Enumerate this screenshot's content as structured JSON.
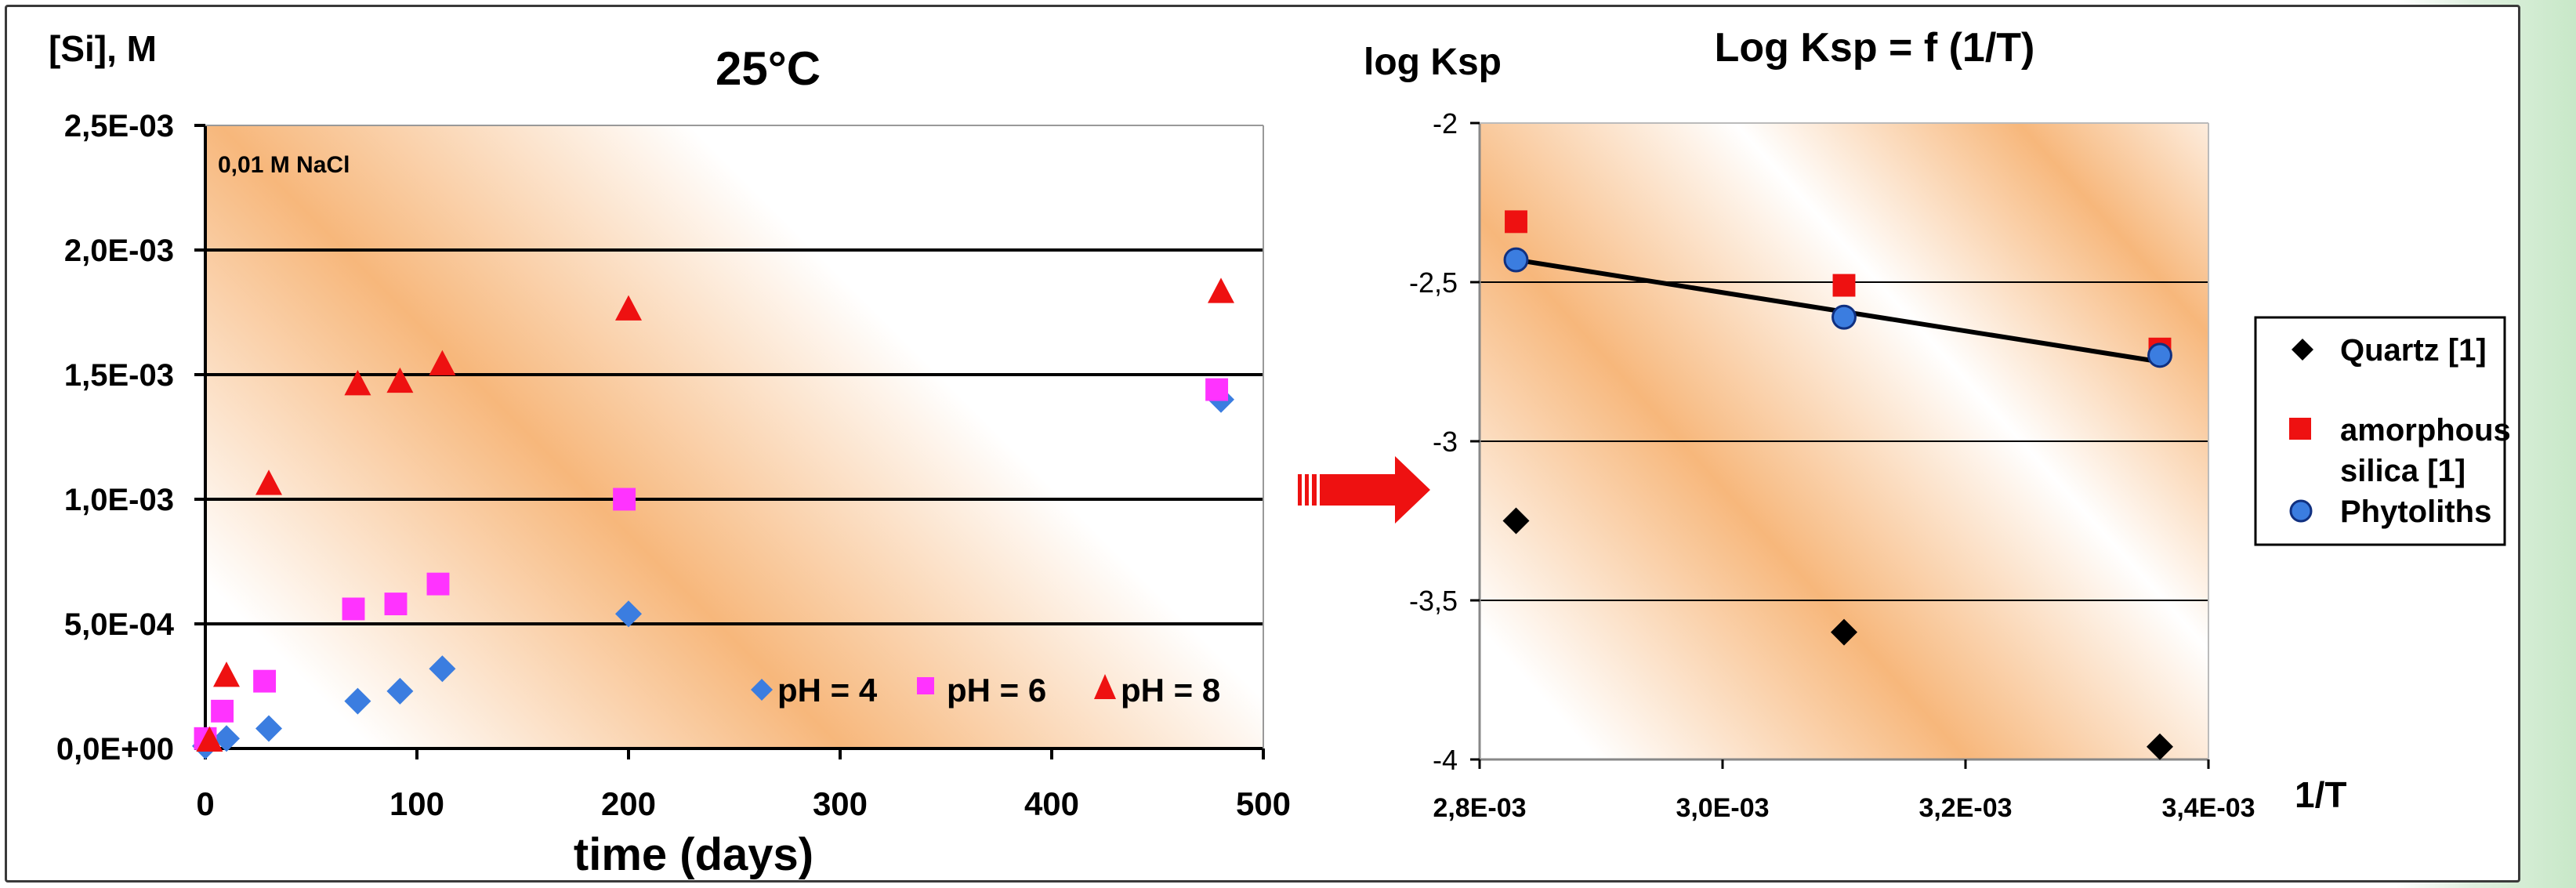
{
  "colors": {
    "ph4": "#3b7de0",
    "ph6": "#ff33ff",
    "ph8": "#ee1111",
    "quartz": "#000000",
    "amorphous": "#ee1111",
    "phytoliths": "#3b7de0",
    "arrow": "#ee1111",
    "band": "#f7b77b"
  },
  "chart_data": [
    {
      "type": "scatter",
      "title": "25°C",
      "xlabel": "time (days)",
      "ylabel": "[Si], M",
      "annotation": "0,01 M NaCl",
      "xlim": [
        0,
        500
      ],
      "ylim": [
        0,
        0.0025
      ],
      "x_ticks": [
        0,
        100,
        200,
        300,
        400,
        500
      ],
      "x_tick_labels": [
        "0",
        "100",
        "200",
        "300",
        "400",
        "500"
      ],
      "y_ticks": [
        0,
        0.0005,
        0.001,
        0.0015,
        0.002,
        0.0025
      ],
      "y_tick_labels": [
        "0,0E+00",
        "5,0E-04",
        "1,0E-03",
        "1,5E-03",
        "2,0E-03",
        "2,5E-03"
      ],
      "grid": true,
      "legend_position": "bottom-right",
      "series": [
        {
          "name": "pH = 4",
          "marker": "diamond",
          "color": "#3b7de0",
          "points": [
            [
              0,
              1e-05
            ],
            [
              10,
              4e-05
            ],
            [
              30,
              8e-05
            ],
            [
              72,
              0.00019
            ],
            [
              92,
              0.00023
            ],
            [
              112,
              0.00032
            ],
            [
              200,
              0.00054
            ],
            [
              480,
              0.0014
            ]
          ]
        },
        {
          "name": "pH = 6",
          "marker": "square",
          "color": "#ff33ff",
          "points": [
            [
              0,
              4e-05
            ],
            [
              8,
              0.00015
            ],
            [
              28,
              0.00027
            ],
            [
              70,
              0.00056
            ],
            [
              90,
              0.00058
            ],
            [
              110,
              0.00066
            ],
            [
              198,
              0.001
            ],
            [
              478,
              0.00144
            ]
          ]
        },
        {
          "name": "pH = 8",
          "marker": "triangle",
          "color": "#ee1111",
          "points": [
            [
              2,
              3e-05
            ],
            [
              10,
              0.00029
            ],
            [
              30,
              0.00106
            ],
            [
              72,
              0.00146
            ],
            [
              92,
              0.00147
            ],
            [
              112,
              0.00154
            ],
            [
              200,
              0.00176
            ],
            [
              480,
              0.00183
            ]
          ]
        }
      ]
    },
    {
      "type": "scatter",
      "title": "Log Ksp = f (1/T)",
      "xlabel": "1/T",
      "ylabel": "log Ksp",
      "xlim": [
        0.0028,
        0.0034
      ],
      "ylim": [
        -4,
        -2
      ],
      "x_ticks": [
        0.0028,
        0.003,
        0.0032,
        0.0034
      ],
      "x_tick_labels": [
        "2,8E-03",
        "3,0E-03",
        "3,2E-03",
        "3,4E-03"
      ],
      "y_ticks": [
        -2,
        -2.5,
        -3,
        -3.5,
        -4
      ],
      "y_tick_labels": [
        "-2",
        "-2,5",
        "-3",
        "-3,5",
        "-4"
      ],
      "grid": true,
      "legend_position": "right",
      "series": [
        {
          "name": "Quartz [1]",
          "marker": "diamond",
          "color": "#000000",
          "points": [
            [
              0.00283,
              -3.25
            ],
            [
              0.0031,
              -3.6
            ],
            [
              0.00336,
              -3.96
            ]
          ]
        },
        {
          "name": "amorphous silica [1]",
          "marker": "square",
          "color": "#ee1111",
          "points": [
            [
              0.00283,
              -2.31
            ],
            [
              0.0031,
              -2.51
            ],
            [
              0.00336,
              -2.71
            ]
          ]
        },
        {
          "name": "Phytoliths",
          "marker": "circle",
          "color": "#3b7de0",
          "points": [
            [
              0.00283,
              -2.43
            ],
            [
              0.0031,
              -2.61
            ],
            [
              0.00336,
              -2.73
            ]
          ]
        }
      ],
      "trendline": {
        "points": [
          [
            0.00283,
            -2.43
          ],
          [
            0.00336,
            -2.75
          ]
        ]
      }
    }
  ]
}
